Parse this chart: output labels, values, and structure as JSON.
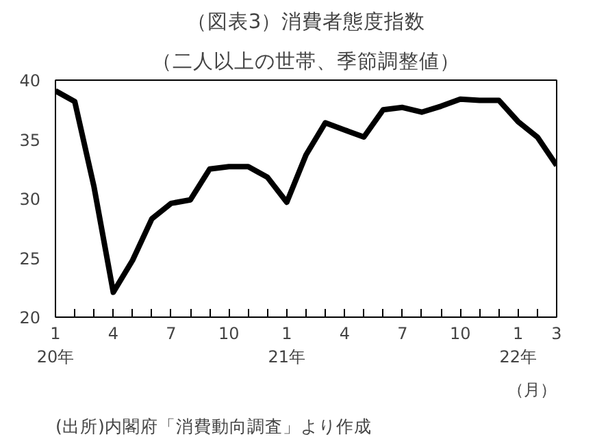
{
  "chart_data": {
    "type": "line",
    "title": "（図表3）消費者態度指数",
    "subtitle": "（二人以上の世帯、季節調整値）",
    "xlabel": "（月）",
    "categories": [
      "1\n20年",
      null,
      null,
      "4",
      null,
      null,
      "7",
      null,
      null,
      "10",
      null,
      null,
      "1\n21年",
      null,
      null,
      "4",
      null,
      null,
      "7",
      null,
      null,
      "10",
      null,
      null,
      "1\n22年",
      null,
      "3"
    ],
    "series": [
      {
        "color": "#000000",
        "values": [
          39.1,
          38.2,
          31.0,
          22.1,
          24.8,
          28.3,
          29.6,
          29.9,
          32.5,
          32.7,
          32.7,
          31.8,
          29.7,
          33.7,
          36.4,
          35.8,
          35.2,
          37.5,
          37.7,
          37.3,
          37.8,
          38.4,
          38.3,
          38.3,
          36.5,
          35.2,
          32.8
        ]
      }
    ],
    "ylim": [
      20,
      40
    ],
    "yticks": [
      20,
      25,
      30,
      35,
      40
    ],
    "grid": false,
    "marker": "none",
    "line_style": "solid",
    "annotations": [
      "(出所)内閣府「消費動向調査」より作成"
    ]
  }
}
